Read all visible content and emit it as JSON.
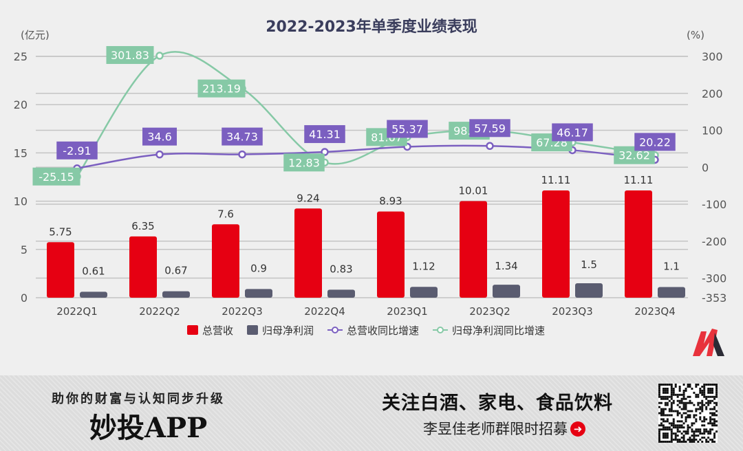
{
  "chart_data": {
    "type": "bar+line",
    "title": "2022-2023年单季度业绩表现",
    "y_left_unit": "(亿元)",
    "y_right_unit": "(%)",
    "y_left_lim": [
      0,
      25
    ],
    "y_left_ticks": [
      0,
      5,
      10,
      15,
      20,
      25
    ],
    "y_right_lim": [
      -353,
      300
    ],
    "y_right_ticks": [
      300,
      200,
      100,
      0,
      -100,
      -200,
      -300,
      -353
    ],
    "categories": [
      "2022Q1",
      "2022Q2",
      "2022Q3",
      "2022Q4",
      "2023Q1",
      "2023Q2",
      "2023Q3",
      "2023Q4"
    ],
    "series": [
      {
        "name": "总营收",
        "type": "bar",
        "axis": "left",
        "color": "#e60012",
        "values": [
          5.75,
          6.35,
          7.6,
          9.24,
          8.93,
          10.01,
          11.11,
          11.11
        ]
      },
      {
        "name": "归母净利润",
        "type": "bar",
        "axis": "left",
        "color": "#5a5c70",
        "values": [
          0.61,
          0.67,
          0.9,
          0.83,
          1.12,
          1.34,
          1.5,
          1.1
        ]
      },
      {
        "name": "总营收同比增速",
        "type": "line",
        "axis": "right",
        "color": "#7b5fc0",
        "values": [
          -2.91,
          34.6,
          34.73,
          41.31,
          55.37,
          57.59,
          46.17,
          20.22
        ]
      },
      {
        "name": "归母净利润同比增速",
        "type": "line",
        "axis": "right",
        "color": "#86c9a6",
        "values": [
          -25.15,
          301.83,
          213.19,
          12.83,
          81.67,
          98.91,
          67.28,
          32.62
        ]
      }
    ],
    "grid": true,
    "legend_position": "bottom"
  },
  "banner": {
    "slogan": "助你的财富与认知同步升级",
    "app": "妙投APP",
    "headline": "关注白酒、家电、食品饮料",
    "sub": "李昱佳老师群限时招募",
    "arrow_icon": "➜"
  }
}
